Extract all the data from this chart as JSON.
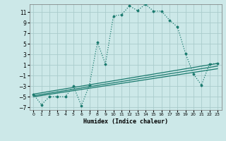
{
  "xlabel": "Humidex (Indice chaleur)",
  "bg_color": "#cce8e8",
  "grid_color": "#aacccc",
  "line_color": "#1a7a6e",
  "xlim": [
    -0.5,
    23.5
  ],
  "ylim": [
    -7.5,
    12.5
  ],
  "xtick_labels": [
    "0",
    "1",
    "2",
    "3",
    "4",
    "5",
    "6",
    "7",
    "8",
    "9",
    "10",
    "11",
    "12",
    "13",
    "14",
    "15",
    "16",
    "17",
    "18",
    "19",
    "20",
    "21",
    "22",
    "23"
  ],
  "xticks": [
    0,
    1,
    2,
    3,
    4,
    5,
    6,
    7,
    8,
    9,
    10,
    11,
    12,
    13,
    14,
    15,
    16,
    17,
    18,
    19,
    20,
    21,
    22,
    23
  ],
  "yticks": [
    -7,
    -5,
    -3,
    -1,
    1,
    3,
    5,
    7,
    9,
    11
  ],
  "series1_x": [
    0,
    1,
    2,
    3,
    4,
    5,
    6,
    7,
    8,
    9,
    10,
    11,
    12,
    13,
    14,
    15,
    16,
    17,
    18,
    19,
    20,
    21,
    22,
    23
  ],
  "series1_y": [
    -4.5,
    -6.5,
    -5.0,
    -5.0,
    -5.0,
    -3.0,
    -6.7,
    -2.8,
    5.3,
    1.2,
    10.3,
    10.5,
    12.2,
    11.3,
    12.5,
    11.2,
    11.2,
    9.5,
    8.2,
    3.2,
    -0.7,
    -2.8,
    1.2,
    1.3
  ],
  "series2_x": [
    0,
    23
  ],
  "series2_y": [
    -4.5,
    1.3
  ],
  "series3_x": [
    0,
    23
  ],
  "series3_y": [
    -4.8,
    0.8
  ],
  "series4_x": [
    0,
    23
  ],
  "series4_y": [
    -5.0,
    0.3
  ]
}
